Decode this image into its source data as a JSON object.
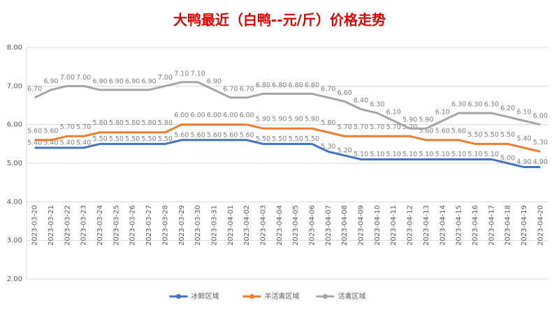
{
  "chart_data": {
    "type": "line",
    "title": "大鸭最近（白鸭--元/斤）价格走势",
    "categories": [
      "2023-03-20",
      "2023-03-21",
      "2023-03-22",
      "2023-03-23",
      "2023-03-24",
      "2023-03-25",
      "2023-03-26",
      "2023-03-27",
      "2023-03-28",
      "2023-03-29",
      "2023-03-30",
      "2023-03-31",
      "2023-04-01",
      "2023-04-02",
      "2023-04-03",
      "2023-04-04",
      "2023-04-05",
      "2023-04-06",
      "2023-04-07",
      "2023-04-08",
      "2023-04-09",
      "2023-04-10",
      "2023-04-11",
      "2023-04-12",
      "2023-04-13",
      "2023-04-14",
      "2023-04-15",
      "2023-04-16",
      "2023-04-17",
      "2023-04-18",
      "2023-04-19",
      "2023-04-20"
    ],
    "series": [
      {
        "name": "冰鲜区域",
        "color": "#4472c4",
        "values": [
          5.4,
          5.4,
          5.4,
          5.4,
          5.5,
          5.5,
          5.5,
          5.5,
          5.5,
          5.6,
          5.6,
          5.6,
          5.6,
          5.6,
          5.5,
          5.5,
          5.5,
          5.5,
          5.3,
          5.2,
          5.1,
          5.1,
          5.1,
          5.1,
          5.1,
          5.1,
          5.1,
          5.1,
          5.1,
          5.0,
          4.9,
          4.9
        ],
        "value_labels": [
          "5.40",
          "5.40",
          "5.40",
          "5.40",
          "5.50",
          "5.50",
          "5.50",
          "5.50",
          "5.50",
          "5.60",
          "5.60",
          "5.60",
          "5.60",
          "5.60",
          "5.50",
          "5.50",
          "5.50",
          "5.50",
          "5.30",
          "5.20",
          "5.10",
          "5.10",
          "5.10",
          "5.10",
          "5.10",
          "5.10",
          "5.10",
          "5.10",
          "5.10",
          "5.00",
          "4.90",
          "4.90"
        ]
      },
      {
        "name": "半活禽区域",
        "color": "#ed7d31",
        "values": [
          5.6,
          5.6,
          5.7,
          5.7,
          5.8,
          5.8,
          5.8,
          5.8,
          5.8,
          6.0,
          6.0,
          6.0,
          6.0,
          6.0,
          5.9,
          5.9,
          5.9,
          5.9,
          5.8,
          5.7,
          5.7,
          5.7,
          5.7,
          5.7,
          5.6,
          5.6,
          5.6,
          5.5,
          5.5,
          5.5,
          5.4,
          5.3
        ],
        "value_labels": [
          "5.60",
          "5.60",
          "5.70",
          "5.70",
          "5.80",
          "5.80",
          "5.80",
          "5.80",
          "5.80",
          "6.00",
          "6.00",
          "6.00",
          "6.00",
          "6.00",
          "5.90",
          "5.90",
          "5.90",
          "5.90",
          "5.80",
          "5.70",
          "5.70",
          "5.70",
          "5.70",
          "5.70",
          "5.60",
          "5.60",
          "5.60",
          "5.50",
          "5.50",
          "5.50",
          "5.40",
          "5.30"
        ]
      },
      {
        "name": "活禽区域",
        "color": "#a5a5a5",
        "values": [
          6.7,
          6.9,
          7.0,
          7.0,
          6.9,
          6.9,
          6.9,
          6.9,
          7.0,
          7.1,
          7.1,
          6.9,
          6.7,
          6.7,
          6.8,
          6.8,
          6.8,
          6.8,
          6.7,
          6.6,
          6.4,
          6.3,
          6.1,
          5.9,
          5.9,
          6.1,
          6.3,
          6.3,
          6.3,
          6.2,
          6.1,
          6.0
        ],
        "value_labels": [
          "6.70",
          "6.90",
          "7.00",
          "7.00",
          "6.90",
          "6.90",
          "6.90",
          "6.90",
          "7.00",
          "7.10",
          "7.10",
          "6.90",
          "6.70",
          "6.70",
          "6.80",
          "6.80",
          "6.80",
          "6.80",
          "6.70",
          "6.60",
          "6.40",
          "6.30",
          "6.10",
          "5.90",
          "5.90",
          "6.10",
          "6.30",
          "6.30",
          "6.30",
          "6.20",
          "6.10",
          "6.00"
        ]
      }
    ],
    "ylim": [
      2,
      8
    ],
    "yticks": [
      {
        "value": 2,
        "label": "2.00"
      },
      {
        "value": 3,
        "label": "3.00"
      },
      {
        "value": 4,
        "label": "4.00"
      },
      {
        "value": 5,
        "label": "5.00"
      },
      {
        "value": 6,
        "label": "6.00"
      },
      {
        "value": 7,
        "label": "7.00"
      },
      {
        "value": 8,
        "label": "8.00"
      }
    ],
    "grid": true,
    "legend": "bottom"
  }
}
